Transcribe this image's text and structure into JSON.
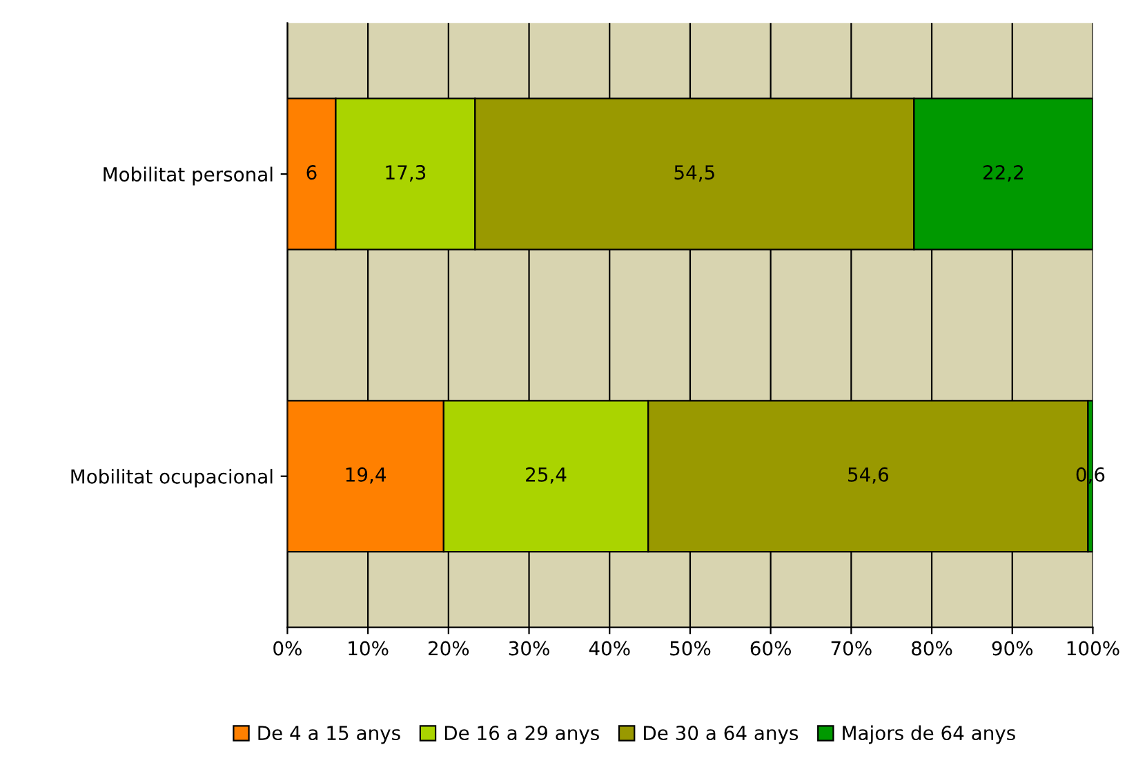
{
  "chart_data": {
    "type": "bar",
    "orientation": "horizontal",
    "stacked": true,
    "categories": [
      "Mobilitat personal",
      "Mobilitat ocupacional"
    ],
    "series": [
      {
        "name": "De 4 a 15 anys",
        "color": "#ff8000",
        "values": [
          6,
          19.4
        ],
        "value_labels": [
          "6",
          "19,4"
        ]
      },
      {
        "name": "De 16 a 29 anys",
        "color": "#aad400",
        "values": [
          17.3,
          25.4
        ],
        "value_labels": [
          "17,3",
          "25,4"
        ]
      },
      {
        "name": "De 30 a 64 anys",
        "color": "#999900",
        "values": [
          54.5,
          54.6
        ],
        "value_labels": [
          "54,5",
          "54,6"
        ]
      },
      {
        "name": "Majors de 64 anys",
        "color": "#009900",
        "values": [
          22.2,
          0.6
        ],
        "value_labels": [
          "22,2",
          "0,6"
        ]
      }
    ],
    "xlim": [
      0,
      100
    ],
    "xticks": [
      {
        "value": 0,
        "label": "0%"
      },
      {
        "value": 10,
        "label": "10%"
      },
      {
        "value": 20,
        "label": "20%"
      },
      {
        "value": 30,
        "label": "30%"
      },
      {
        "value": 40,
        "label": "40%"
      },
      {
        "value": 50,
        "label": "50%"
      },
      {
        "value": 60,
        "label": "60%"
      },
      {
        "value": 70,
        "label": "70%"
      },
      {
        "value": 80,
        "label": "80%"
      },
      {
        "value": 90,
        "label": "90%"
      },
      {
        "value": 100,
        "label": "100%"
      }
    ],
    "grid": "x",
    "legend": "bottom"
  }
}
